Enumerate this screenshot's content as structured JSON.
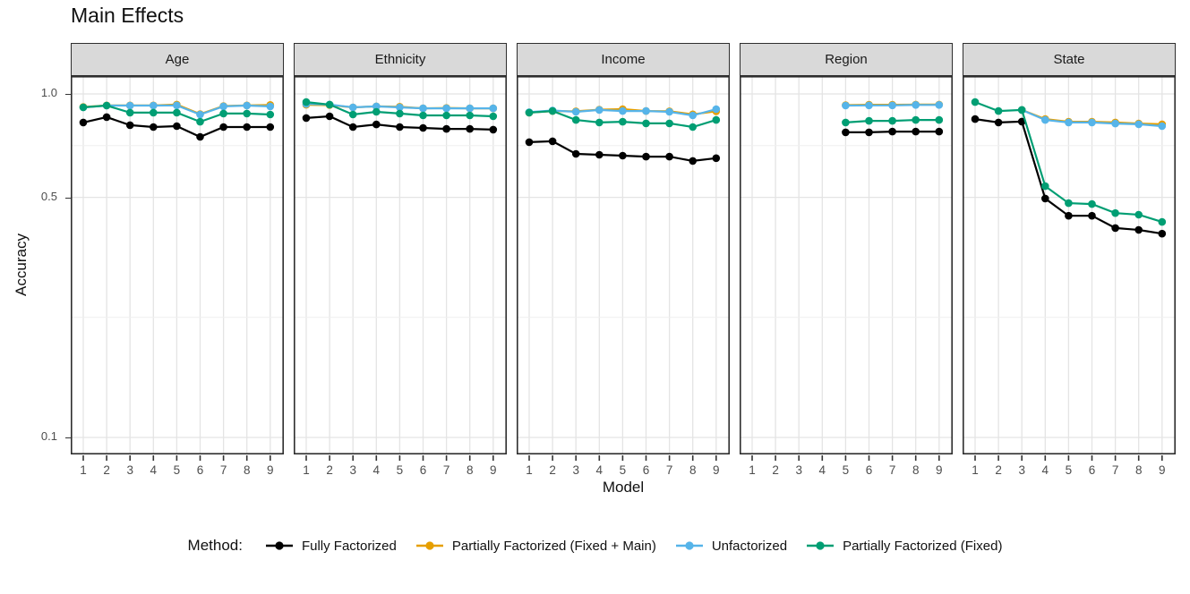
{
  "title": "Main Effects",
  "chart_data": {
    "type": "line",
    "title": "Main Effects",
    "xlabel": "Model",
    "ylabel": "Accuracy",
    "x": [
      1,
      2,
      3,
      4,
      5,
      6,
      7,
      8,
      9
    ],
    "y_scale": "log10",
    "ylim": [
      0.089,
      1.13
    ],
    "y_major_ticks": [
      1.0,
      0.5,
      0.1
    ],
    "y_tick_labels": [
      "1.0",
      "0.5",
      "0.1"
    ],
    "y_minor_gridlines": [
      0.7071,
      0.2236
    ],
    "grid": true,
    "legend_position": "bottom",
    "legend_title": "Method:",
    "series_meta": [
      {
        "name": "Fully Factorized",
        "color": "#000000"
      },
      {
        "name": "Partially Factorized (Fixed + Main)",
        "color": "#E69F00"
      },
      {
        "name": "Unfactorized",
        "color": "#56B4E9"
      },
      {
        "name": "Partially Factorized (Fixed)",
        "color": "#009E73"
      }
    ],
    "facets": [
      {
        "label": "Age",
        "series": [
          {
            "name": "Fully Factorized",
            "values": [
              0.826,
              0.856,
              0.811,
              0.801,
              0.806,
              0.75,
              0.801,
              0.801,
              0.801
            ]
          },
          {
            "name": "Partially Factorized (Fixed + Main)",
            "values": [
              0.916,
              0.926,
              0.926,
              0.926,
              0.931,
              0.874,
              0.922,
              0.926,
              0.929
            ]
          },
          {
            "name": "Unfactorized",
            "values": [
              0.914,
              0.925,
              0.925,
              0.925,
              0.926,
              0.871,
              0.92,
              0.925,
              0.92
            ]
          },
          {
            "name": "Partially Factorized (Fixed)",
            "values": [
              0.914,
              0.925,
              0.882,
              0.882,
              0.882,
              0.83,
              0.877,
              0.877,
              0.871
            ]
          }
        ]
      },
      {
        "label": "Ethnicity",
        "series": [
          {
            "name": "Fully Factorized",
            "values": [
              0.851,
              0.861,
              0.801,
              0.815,
              0.801,
              0.796,
              0.791,
              0.791,
              0.787
            ]
          },
          {
            "name": "Partially Factorized (Fixed + Main)",
            "values": [
              0.93,
              0.928,
              0.914,
              0.92,
              0.918,
              0.908,
              0.91,
              0.908,
              0.908
            ]
          },
          {
            "name": "Unfactorized",
            "values": [
              0.935,
              0.931,
              0.914,
              0.92,
              0.914,
              0.908,
              0.908,
              0.908,
              0.908
            ]
          },
          {
            "name": "Partially Factorized (Fixed)",
            "values": [
              0.947,
              0.931,
              0.871,
              0.887,
              0.877,
              0.866,
              0.866,
              0.866,
              0.861
            ]
          }
        ]
      },
      {
        "label": "Income",
        "series": [
          {
            "name": "Fully Factorized",
            "values": [
              0.724,
              0.728,
              0.669,
              0.665,
              0.661,
              0.657,
              0.657,
              0.638,
              0.65
            ]
          },
          {
            "name": "Partially Factorized (Fixed + Main)",
            "values": [
              0.882,
              0.892,
              0.89,
              0.9,
              0.903,
              0.892,
              0.89,
              0.872,
              0.89
            ]
          },
          {
            "name": "Unfactorized",
            "values": [
              0.885,
              0.895,
              0.887,
              0.898,
              0.892,
              0.892,
              0.887,
              0.866,
              0.903
            ]
          },
          {
            "name": "Partially Factorized (Fixed)",
            "values": [
              0.882,
              0.892,
              0.84,
              0.826,
              0.83,
              0.821,
              0.821,
              0.801,
              0.84
            ]
          }
        ]
      },
      {
        "label": "Region",
        "series": [
          {
            "name": "Fully Factorized",
            "values": [
              null,
              null,
              null,
              null,
              0.773,
              0.773,
              0.777,
              0.777,
              0.777
            ]
          },
          {
            "name": "Partially Factorized (Fixed + Main)",
            "values": [
              null,
              null,
              null,
              null,
              0.928,
              0.93,
              0.93,
              0.931,
              0.931
            ]
          },
          {
            "name": "Unfactorized",
            "values": [
              null,
              null,
              null,
              null,
              0.925,
              0.926,
              0.926,
              0.929,
              0.929
            ]
          },
          {
            "name": "Partially Factorized (Fixed)",
            "values": [
              null,
              null,
              null,
              null,
              0.826,
              0.835,
              0.835,
              0.84,
              0.84
            ]
          }
        ]
      },
      {
        "label": "State",
        "series": [
          {
            "name": "Fully Factorized",
            "values": [
              0.845,
              0.826,
              0.831,
              0.496,
              0.442,
              0.442,
              0.407,
              0.402,
              0.392
            ]
          },
          {
            "name": "Partially Factorized (Fixed + Main)",
            "values": [
              null,
              null,
              0.898,
              0.845,
              0.83,
              0.83,
              0.826,
              0.82,
              0.816
            ]
          },
          {
            "name": "Unfactorized",
            "values": [
              null,
              null,
              0.898,
              0.84,
              0.826,
              0.826,
              0.82,
              0.816,
              0.806
            ]
          },
          {
            "name": "Partially Factorized (Fixed)",
            "values": [
              0.947,
              0.892,
              0.898,
              0.539,
              0.481,
              0.478,
              0.45,
              0.445,
              0.424
            ]
          }
        ]
      }
    ]
  },
  "style": {
    "grid_major_color": "#E4E4E4",
    "grid_minor_color": "#EFEFEF",
    "panel_border_color": "#2e2e2e",
    "tick_label_color": "#4D4D4D",
    "strip_bg_color": "#D9D9D9"
  }
}
